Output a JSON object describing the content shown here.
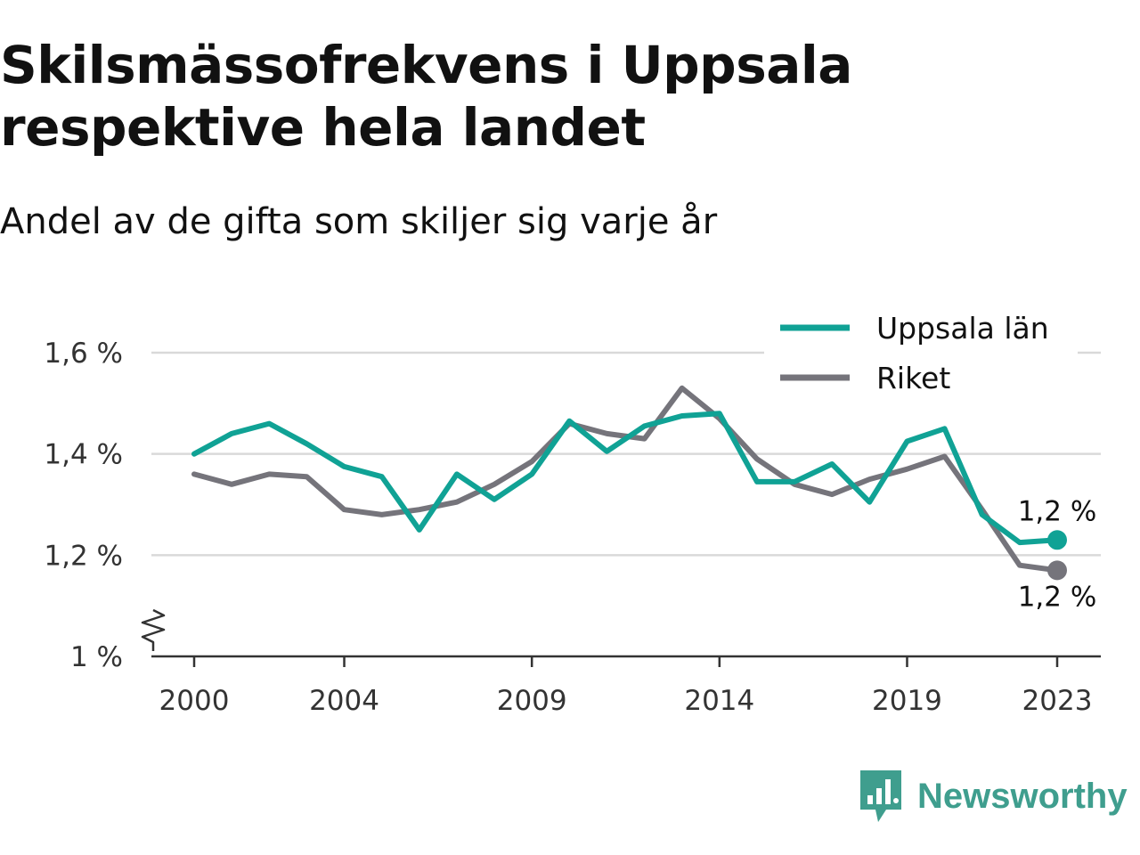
{
  "header": {
    "title": "Skilsmässofrekvens i Uppsala respektive hela landet",
    "subtitle": "Andel av de gifta som skiljer sig varje år"
  },
  "brand": {
    "name": "Newsworthy",
    "icon": "newsworthy-logo-icon",
    "color": "#3f9e8e"
  },
  "chart_data": {
    "type": "line",
    "x": [
      2000,
      2001,
      2002,
      2003,
      2004,
      2005,
      2006,
      2007,
      2008,
      2009,
      2010,
      2011,
      2012,
      2013,
      2014,
      2015,
      2016,
      2017,
      2018,
      2019,
      2020,
      2021,
      2022,
      2023
    ],
    "series": [
      {
        "name": "Uppsala län",
        "color": "#10a295",
        "values": [
          1.4,
          1.44,
          1.46,
          1.42,
          1.375,
          1.355,
          1.25,
          1.36,
          1.31,
          1.36,
          1.465,
          1.405,
          1.455,
          1.475,
          1.48,
          1.345,
          1.345,
          1.38,
          1.305,
          1.425,
          1.45,
          1.28,
          1.225,
          1.23
        ],
        "end_label": "1,2 %"
      },
      {
        "name": "Riket",
        "color": "#75747b",
        "values": [
          1.36,
          1.34,
          1.36,
          1.355,
          1.29,
          1.28,
          1.29,
          1.305,
          1.34,
          1.385,
          1.46,
          1.44,
          1.43,
          1.53,
          1.47,
          1.39,
          1.34,
          1.32,
          1.35,
          1.37,
          1.395,
          1.29,
          1.18,
          1.17
        ],
        "end_label": "1,2 %"
      }
    ],
    "yticks": [
      1.0,
      1.2,
      1.4,
      1.6
    ],
    "ytick_labels": [
      "1 %",
      "1,2 %",
      "1,4 %",
      "1,6 %"
    ],
    "xticks": [
      2000,
      2004,
      2009,
      2014,
      2019,
      2023
    ],
    "xtick_labels": [
      "2000",
      "2004",
      "2009",
      "2014",
      "2019",
      "2023"
    ],
    "ylim": [
      1.0,
      1.6
    ],
    "xlim": [
      2000,
      2023
    ],
    "y_axis_break": true,
    "grid": true,
    "legend_position": "top-right",
    "title": "Skilsmässofrekvens i Uppsala respektive hela landet",
    "subtitle": "Andel av de gifta som skiljer sig varje år",
    "xlabel": "",
    "ylabel": ""
  }
}
